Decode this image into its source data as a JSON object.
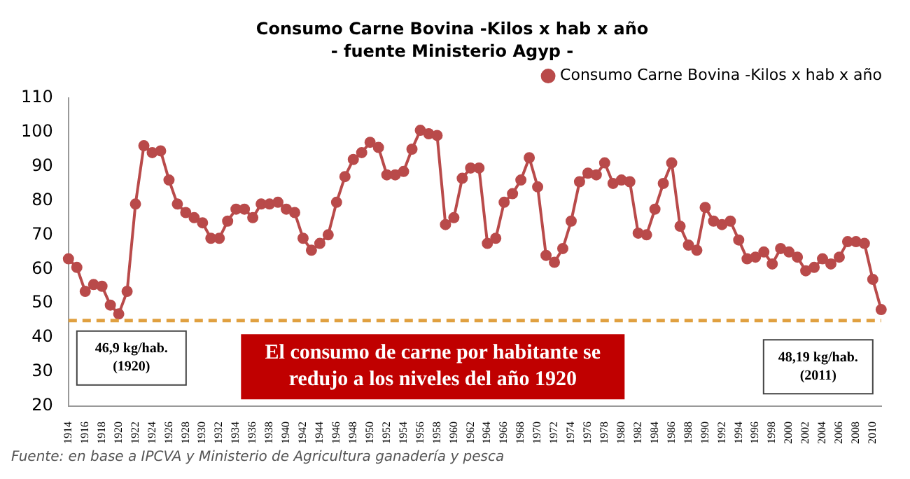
{
  "chart_data": {
    "type": "line",
    "title": "Consumo Carne Bovina -Kilos x hab x año",
    "subtitle": "- fuente Ministerio Agyp -",
    "categories": [
      "1914",
      null,
      "1916",
      null,
      "1918",
      null,
      "1920",
      null,
      "1922",
      null,
      "1924",
      null,
      "1926",
      null,
      "1928",
      null,
      "1930",
      null,
      "1932",
      null,
      "1934",
      null,
      "1936",
      null,
      "1938",
      null,
      "1940",
      null,
      "1942",
      null,
      "1944",
      null,
      "1946",
      null,
      "1948",
      null,
      "1950",
      null,
      "1952",
      null,
      "1954",
      null,
      "1956",
      null,
      "1958",
      null,
      "1960",
      null,
      "1962",
      null,
      "1964",
      null,
      "1966",
      null,
      "1968",
      null,
      "1970",
      null,
      "1972",
      null,
      "1974",
      null,
      "1976",
      null,
      "1978",
      null,
      "1980",
      null,
      "1982",
      null,
      "1984",
      null,
      "1986",
      null,
      "1988",
      null,
      "1990",
      null,
      "1992",
      null,
      "1994",
      null,
      "1996",
      null,
      "1998",
      null,
      "2000",
      null,
      "2002",
      null,
      "2004",
      null,
      "2006",
      null,
      "2008",
      null,
      "2010",
      null
    ],
    "series": [
      {
        "name": "Consumo Carne Bovina -Kilos x hab x año",
        "color": "#b94a4a",
        "values": [
          63,
          60.5,
          53.5,
          55.5,
          55,
          49.5,
          46.9,
          53.5,
          79,
          96,
          94,
          94.5,
          86,
          79,
          76.5,
          75,
          73.5,
          69,
          69,
          74,
          77.5,
          77.5,
          75,
          79,
          79,
          79.5,
          77.5,
          76.5,
          69,
          65.5,
          67.5,
          70,
          79.5,
          87,
          92,
          94,
          97,
          95.5,
          87.5,
          87.5,
          88.5,
          95,
          100.5,
          99.5,
          99,
          73,
          75,
          86.5,
          89.5,
          89.5,
          67.5,
          69,
          79.5,
          82,
          86,
          92.5,
          84,
          64,
          62,
          66,
          74,
          85.5,
          88,
          87.5,
          91,
          85,
          86,
          85.5,
          70.5,
          70,
          77.5,
          85,
          91,
          72.5,
          67,
          65.5,
          78,
          74,
          73,
          74,
          68.5,
          63,
          63.5,
          65,
          61.5,
          66,
          65,
          63.5,
          59.5,
          60.5,
          63,
          61.5,
          63.5,
          68,
          68,
          67.5,
          57,
          48.19
        ]
      }
    ],
    "ylim": [
      20,
      110
    ],
    "yticks": [
      20,
      30,
      40,
      50,
      60,
      70,
      80,
      90,
      100,
      110
    ],
    "ref_lines": [
      {
        "axis": "y",
        "value": 45,
        "color": "#e0a040",
        "line_style": "dashed"
      }
    ],
    "annotations": [
      {
        "text": "46,9 kg/hab. (1920)",
        "x": "1920",
        "y": 46.9
      },
      "El consumo de carne por habitante se redujo a los niveles del año 1920",
      "48,19 kg/hab. (2011)",
      "Fuente: en base a IPCVA y Ministerio de Agricultura ganadería y pesca"
    ],
    "legend": "top right",
    "marker": "circle",
    "line_style": "solid",
    "grid": false
  }
}
